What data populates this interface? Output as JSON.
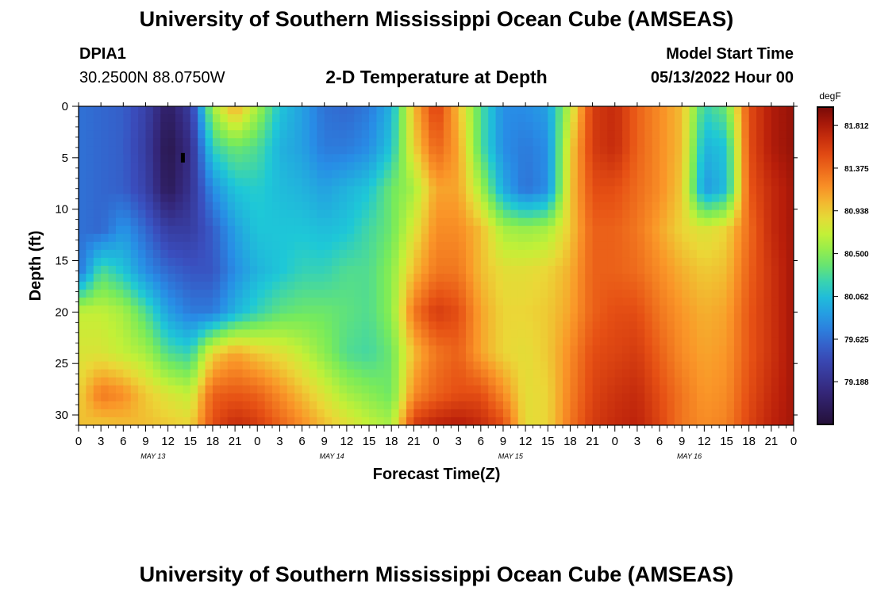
{
  "header": {
    "title": "University of Southern Mississippi Ocean Cube (AMSEAS)",
    "station": "DPIA1",
    "coords": "30.2500N  88.0750W",
    "plot_title": "2-D Temperature at Depth",
    "model_label": "Model Start Time",
    "model_time": "05/13/2022 Hour 00"
  },
  "footer": {
    "title": "University of Southern Mississippi Ocean Cube (AMSEAS)"
  },
  "chart_data": {
    "type": "heatmap",
    "title": "2-D Temperature at Depth",
    "xlabel": "Forecast Time(Z)",
    "ylabel": "Depth (ft)",
    "x_ticks": [
      "0",
      "3",
      "6",
      "9",
      "12",
      "15",
      "18",
      "21",
      "0",
      "3",
      "6",
      "9",
      "12",
      "15",
      "18",
      "21",
      "0",
      "3",
      "6",
      "9",
      "12",
      "15",
      "18",
      "21",
      "0",
      "3",
      "6",
      "9",
      "12",
      "15",
      "18",
      "21",
      "0"
    ],
    "day_labels": [
      "MAY 13",
      "MAY 14",
      "MAY 15",
      "MAY 16"
    ],
    "y_ticks": [
      0,
      5,
      10,
      15,
      20,
      25,
      30
    ],
    "ylim": [
      31,
      0
    ],
    "xlim_hours": [
      0,
      96
    ],
    "colorbar": {
      "unit": "degF",
      "ticks": [
        "81.812",
        "81.375",
        "80.938",
        "80.500",
        "80.062",
        "79.625",
        "79.188"
      ],
      "range": [
        78.75,
        82.0
      ]
    },
    "depths_ft": [
      0,
      4,
      8,
      12,
      16,
      20,
      24,
      28,
      31
    ],
    "times_hr": [
      0,
      3,
      6,
      9,
      12,
      15,
      18,
      21,
      24,
      27,
      30,
      33,
      36,
      39,
      42,
      45,
      48,
      51,
      54,
      57,
      60,
      63,
      66,
      69,
      72,
      75,
      78,
      81,
      84,
      87,
      90,
      93,
      96
    ],
    "values_degF": [
      [
        79.65,
        79.6,
        79.55,
        79.35,
        78.95,
        79.3,
        80.6,
        81.1,
        80.6,
        80.1,
        79.9,
        79.65,
        79.6,
        79.7,
        80.0,
        81.0,
        81.6,
        81.0,
        80.3,
        79.8,
        79.8,
        79.9,
        80.7,
        81.6,
        81.7,
        81.4,
        81.2,
        81.0,
        80.2,
        80.4,
        81.5,
        81.8,
        81.9
      ],
      [
        79.65,
        79.6,
        79.55,
        79.3,
        78.85,
        79.15,
        80.2,
        80.4,
        80.3,
        80.0,
        79.9,
        79.7,
        79.7,
        79.8,
        80.1,
        80.9,
        81.4,
        81.1,
        80.3,
        79.8,
        79.7,
        79.8,
        80.9,
        81.6,
        81.7,
        81.4,
        81.2,
        81.0,
        80.0,
        80.1,
        81.5,
        81.8,
        81.9
      ],
      [
        79.65,
        79.6,
        79.55,
        79.35,
        78.9,
        79.2,
        79.8,
        80.1,
        80.15,
        80.05,
        80.0,
        79.9,
        80.0,
        80.1,
        80.4,
        80.6,
        81.1,
        81.1,
        80.6,
        79.95,
        79.65,
        79.8,
        80.95,
        81.5,
        81.5,
        81.35,
        81.2,
        80.95,
        79.85,
        80.05,
        81.45,
        81.7,
        81.85
      ],
      [
        79.65,
        79.6,
        79.85,
        79.6,
        79.3,
        79.3,
        79.55,
        79.9,
        80.1,
        80.1,
        80.1,
        80.05,
        80.1,
        80.25,
        80.4,
        80.8,
        81.2,
        81.2,
        81.0,
        80.6,
        80.55,
        80.6,
        80.95,
        81.4,
        81.4,
        81.3,
        81.1,
        80.9,
        80.8,
        80.9,
        81.35,
        81.7,
        81.85
      ],
      [
        79.65,
        80.3,
        80.1,
        79.8,
        79.6,
        79.5,
        79.5,
        79.8,
        80.0,
        80.1,
        80.2,
        80.2,
        80.3,
        80.3,
        80.5,
        81.0,
        81.3,
        81.3,
        81.0,
        80.85,
        80.85,
        80.9,
        81.05,
        81.4,
        81.4,
        81.35,
        81.2,
        81.05,
        80.95,
        81.0,
        81.4,
        81.65,
        81.85
      ],
      [
        80.7,
        80.7,
        80.6,
        80.3,
        79.9,
        79.7,
        79.7,
        80.0,
        80.2,
        80.35,
        80.4,
        80.4,
        80.35,
        80.3,
        80.5,
        81.3,
        81.6,
        81.5,
        81.1,
        80.9,
        80.9,
        80.95,
        81.1,
        81.4,
        81.5,
        81.5,
        81.3,
        81.15,
        81.05,
        81.1,
        81.45,
        81.65,
        81.85
      ],
      [
        80.8,
        80.8,
        80.7,
        80.6,
        80.3,
        80.2,
        80.9,
        81.1,
        80.95,
        80.85,
        80.7,
        80.5,
        80.3,
        80.25,
        80.4,
        81.0,
        81.3,
        81.4,
        81.1,
        80.9,
        80.85,
        80.95,
        81.2,
        81.5,
        81.55,
        81.6,
        81.4,
        81.2,
        81.1,
        81.15,
        81.45,
        81.65,
        81.85
      ],
      [
        80.9,
        81.3,
        81.2,
        80.95,
        80.8,
        80.7,
        81.4,
        81.45,
        81.4,
        81.2,
        81.0,
        80.8,
        80.6,
        80.5,
        80.4,
        81.2,
        81.4,
        81.5,
        81.5,
        81.2,
        80.85,
        80.9,
        81.25,
        81.55,
        81.65,
        81.7,
        81.5,
        81.3,
        81.15,
        81.2,
        81.5,
        81.7,
        81.85
      ],
      [
        81.0,
        80.95,
        81.0,
        81.0,
        80.95,
        80.9,
        81.5,
        81.7,
        81.6,
        81.4,
        81.2,
        81.0,
        80.85,
        80.7,
        80.6,
        81.6,
        81.75,
        81.8,
        81.7,
        81.5,
        80.85,
        80.9,
        81.3,
        81.6,
        81.7,
        81.75,
        81.55,
        81.3,
        81.2,
        81.25,
        81.55,
        81.75,
        81.85
      ]
    ],
    "marker": {
      "hour": 14,
      "depth_ft": 5
    }
  }
}
